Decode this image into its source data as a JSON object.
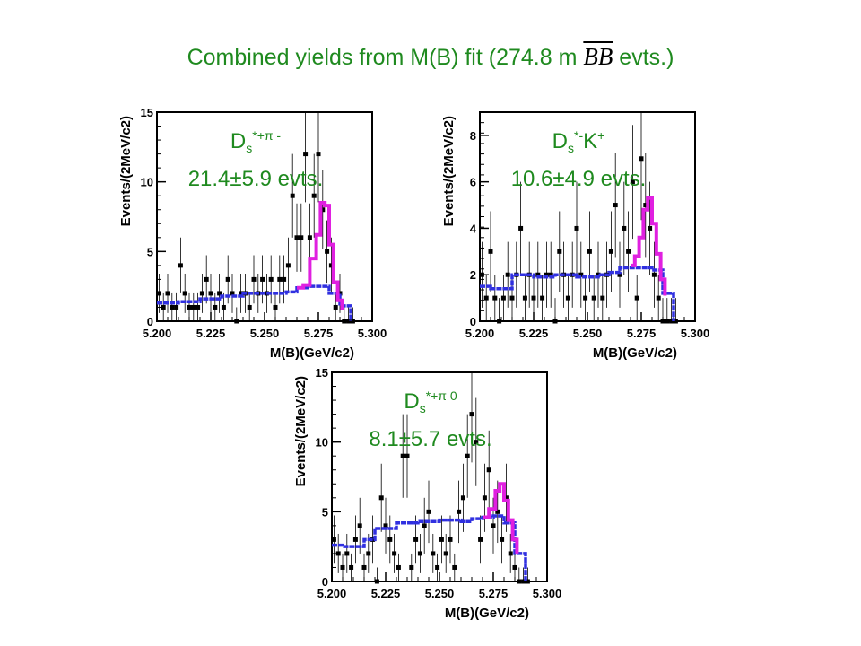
{
  "slide": {
    "title_prefix": "Combined yields from M(B) fit (274.8 m ",
    "title_bb": "BB",
    "title_suffix": " evts.)"
  },
  "colors": {
    "title": "#1f8a1f",
    "signal": "#e020e0",
    "background": "#3030e0",
    "data": "#000000"
  },
  "chart_data": [
    {
      "type": "line",
      "title_main": "D",
      "title_sub": "s",
      "title_sup": "*+π -",
      "title_line2": "21.4±5.9 evts.",
      "xlabel": "M(B)(GeV/c2)",
      "ylabel": "Events/(2MeV/c2)",
      "xlim": [
        5.2,
        5.3
      ],
      "ylim": [
        0,
        15
      ],
      "xticks": [
        "5.200",
        "5.225",
        "5.250",
        "5.275",
        "5.300"
      ],
      "yticks": [
        "0",
        "5",
        "10",
        "15"
      ],
      "series": [
        {
          "kind": "data",
          "x": [
            5.201,
            5.203,
            5.205,
            5.207,
            5.209,
            5.211,
            5.213,
            5.215,
            5.217,
            5.219,
            5.221,
            5.223,
            5.225,
            5.227,
            5.229,
            5.231,
            5.233,
            5.235,
            5.237,
            5.239,
            5.241,
            5.243,
            5.245,
            5.247,
            5.249,
            5.251,
            5.253,
            5.255,
            5.257,
            5.259,
            5.261,
            5.263,
            5.265,
            5.267,
            5.269,
            5.271,
            5.273,
            5.275,
            5.277,
            5.279,
            5.281,
            5.283,
            5.285,
            5.287,
            5.289,
            5.291
          ],
          "y": [
            2,
            1,
            2,
            1,
            1,
            4,
            2,
            1,
            1,
            1,
            2,
            3,
            2,
            1,
            2,
            1,
            3,
            2,
            0,
            2,
            2,
            1,
            3,
            2,
            3,
            2,
            3,
            1,
            3,
            3,
            4,
            9,
            6,
            6,
            12,
            6,
            9,
            12,
            8,
            5,
            4,
            1,
            2,
            0,
            0,
            0
          ]
        },
        {
          "kind": "background",
          "x": [
            5.2,
            5.205,
            5.21,
            5.22,
            5.23,
            5.24,
            5.25,
            5.26,
            5.265,
            5.27,
            5.275,
            5.28,
            5.285,
            5.29
          ],
          "y": [
            1.3,
            1.3,
            1.4,
            1.6,
            1.8,
            2.0,
            2.0,
            2.1,
            2.4,
            2.5,
            2.5,
            2.0,
            1.1,
            0
          ]
        },
        {
          "kind": "signal",
          "x": [
            5.265,
            5.268,
            5.271,
            5.274,
            5.276,
            5.278,
            5.28,
            5.282,
            5.284,
            5.286
          ],
          "y": [
            2.4,
            2.6,
            4.5,
            6.2,
            8.5,
            8.3,
            5.5,
            2.8,
            1.5,
            0.8
          ]
        }
      ]
    },
    {
      "type": "line",
      "title_main": "D",
      "title_sub": "s",
      "title_sup": "*-",
      "title_main2": "K",
      "title_sup2": "+",
      "title_line2": "10.6±4.9 evts.",
      "xlabel": "M(B)(GeV/c2)",
      "ylabel": "Events/(2MeV/c2)",
      "xlim": [
        5.2,
        5.3
      ],
      "ylim": [
        0,
        9
      ],
      "xticks": [
        "5.200",
        "5.225",
        "5.250",
        "5.275",
        "5.300"
      ],
      "yticks": [
        "0",
        "2",
        "4",
        "6",
        "8"
      ],
      "series": [
        {
          "kind": "data",
          "x": [
            5.201,
            5.203,
            5.205,
            5.207,
            5.209,
            5.211,
            5.213,
            5.215,
            5.217,
            5.219,
            5.221,
            5.223,
            5.225,
            5.227,
            5.229,
            5.231,
            5.233,
            5.235,
            5.237,
            5.239,
            5.241,
            5.243,
            5.245,
            5.247,
            5.249,
            5.251,
            5.253,
            5.255,
            5.257,
            5.259,
            5.261,
            5.263,
            5.265,
            5.267,
            5.269,
            5.271,
            5.273,
            5.275,
            5.277,
            5.279,
            5.281,
            5.283,
            5.285,
            5.287,
            5.289,
            5.291
          ],
          "y": [
            2,
            1,
            3,
            1,
            0,
            1,
            2,
            1,
            2,
            4,
            1,
            2,
            1,
            2,
            1,
            2,
            2,
            0,
            3,
            2,
            1,
            2,
            4,
            2,
            1,
            3,
            1,
            2,
            1,
            2,
            3,
            5,
            2,
            4,
            3,
            6,
            1,
            7,
            5,
            4,
            2,
            1,
            0,
            0,
            0,
            0
          ]
        },
        {
          "kind": "background",
          "x": [
            5.2,
            5.205,
            5.215,
            5.225,
            5.235,
            5.245,
            5.255,
            5.26,
            5.265,
            5.27,
            5.275,
            5.28,
            5.285,
            5.29
          ],
          "y": [
            1.5,
            1.4,
            2.0,
            1.9,
            2.0,
            1.9,
            2.0,
            2.1,
            2.3,
            2.3,
            2.3,
            2.2,
            1.2,
            0
          ]
        },
        {
          "kind": "signal",
          "x": [
            5.27,
            5.272,
            5.274,
            5.276,
            5.278,
            5.28,
            5.282,
            5.284,
            5.286
          ],
          "y": [
            2.4,
            2.8,
            3.6,
            4.8,
            5.3,
            4.2,
            2.9,
            1.8,
            1.1
          ]
        }
      ]
    },
    {
      "type": "line",
      "title_main": "D",
      "title_sub": "s",
      "title_sup": "*+π 0",
      "title_line2": "8.1±5.7 evts.",
      "xlabel": "M(B)(GeV/c2)",
      "ylabel": "Events/(2MeV/c2)",
      "xlim": [
        5.2,
        5.3
      ],
      "ylim": [
        0,
        15
      ],
      "xticks": [
        "5.200",
        "5.225",
        "5.250",
        "5.275",
        "5.300"
      ],
      "yticks": [
        "0",
        "5",
        "10",
        "15"
      ],
      "series": [
        {
          "kind": "data",
          "x": [
            5.201,
            5.203,
            5.205,
            5.207,
            5.209,
            5.211,
            5.213,
            5.215,
            5.217,
            5.219,
            5.221,
            5.223,
            5.225,
            5.227,
            5.229,
            5.231,
            5.233,
            5.235,
            5.237,
            5.239,
            5.241,
            5.243,
            5.245,
            5.247,
            5.249,
            5.251,
            5.253,
            5.255,
            5.257,
            5.259,
            5.261,
            5.263,
            5.265,
            5.267,
            5.269,
            5.271,
            5.273,
            5.275,
            5.277,
            5.279,
            5.281,
            5.283,
            5.285,
            5.287,
            5.289,
            5.291
          ],
          "y": [
            3,
            2,
            1,
            2,
            1,
            3,
            4,
            1,
            2,
            3,
            0,
            6,
            4,
            3,
            2,
            1,
            9,
            9,
            1,
            3,
            2,
            4,
            5,
            2,
            1,
            3,
            2,
            3,
            1,
            5,
            6,
            9,
            12,
            10,
            3,
            6,
            8,
            4,
            5,
            3,
            6,
            2,
            1,
            0,
            0,
            0
          ]
        },
        {
          "kind": "background",
          "x": [
            5.2,
            5.205,
            5.215,
            5.22,
            5.23,
            5.24,
            5.25,
            5.26,
            5.265,
            5.27,
            5.275,
            5.28,
            5.285,
            5.29
          ],
          "y": [
            2.6,
            2.5,
            3.0,
            3.8,
            4.2,
            4.3,
            4.4,
            4.3,
            4.5,
            4.6,
            4.7,
            4.2,
            2.0,
            0
          ]
        },
        {
          "kind": "signal",
          "x": [
            5.27,
            5.273,
            5.276,
            5.278,
            5.28,
            5.282,
            5.284,
            5.286
          ],
          "y": [
            4.6,
            5.2,
            6.5,
            7.0,
            5.8,
            4.4,
            3.0,
            2.0
          ]
        }
      ]
    }
  ]
}
